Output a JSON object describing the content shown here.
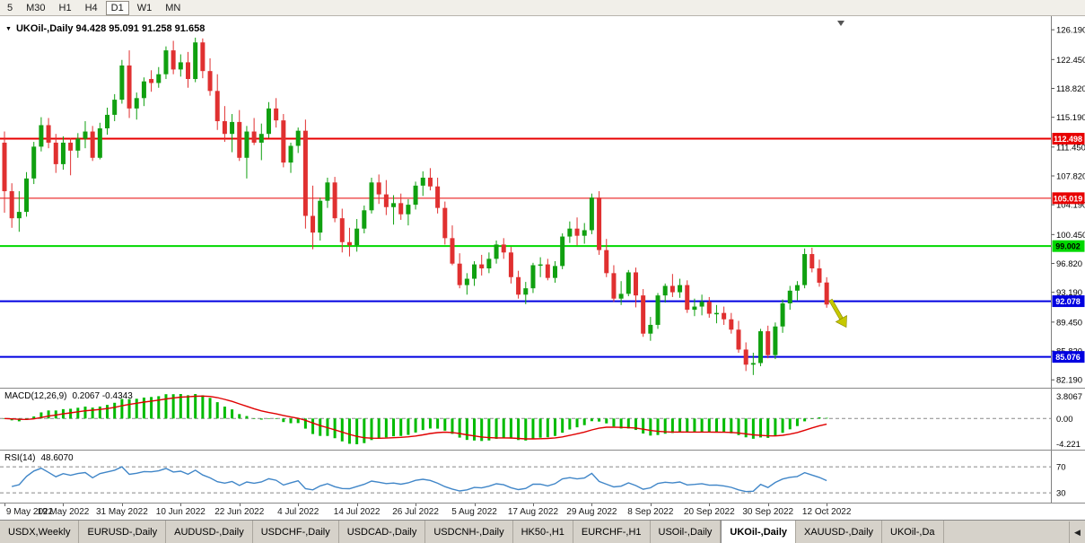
{
  "toolbar": {
    "buttons": [
      "5",
      "M30",
      "H1",
      "H4",
      "D1",
      "W1",
      "MN"
    ],
    "active": "D1"
  },
  "chart": {
    "marker_icon": "▼",
    "title": "UKOil-,Daily  94.428 95.091 91.258 91.658"
  },
  "colors": {
    "bull": "#10a010",
    "bear": "#e03030",
    "red_line": "#e80000",
    "green_line": "#00d800",
    "blue_line": "#0000e0",
    "macd_hist": "#00bb00",
    "macd_signal": "#e00000",
    "rsi_line": "#4086c8",
    "arrow": "#c6c800",
    "axis_line": "#808080",
    "dash": "#888888"
  },
  "chart_data": {
    "type": "candlestick",
    "symbol": "UKOil-",
    "timeframe": "Daily",
    "last_ohlc": {
      "open": 94.428,
      "high": 95.091,
      "low": 91.258,
      "close": 91.658
    },
    "y_range": [
      81.2,
      127.9
    ],
    "y_ticks": [
      126.19,
      122.45,
      118.82,
      115.19,
      111.45,
      107.82,
      104.19,
      100.45,
      96.82,
      93.19,
      89.45,
      85.82,
      82.19
    ],
    "x_label_every": 8,
    "x_labels": [
      "9 May 2022",
      "19 May 2022",
      "31 May 2022",
      "10 Jun 2022",
      "22 Jun 2022",
      "4 Jul 2022",
      "14 Jul 2022",
      "26 Jul 2022",
      "5 Aug 2022",
      "17 Aug 2022",
      "29 Aug 2022",
      "8 Sep 2022",
      "20 Sep 2022",
      "30 Sep 2022",
      "12 Oct 2022"
    ],
    "hlines": [
      {
        "value": 112.498,
        "label": "112.498",
        "color": "#e80000",
        "width": 2,
        "text_color": "#ffffff"
      },
      {
        "value": 105.019,
        "label": "105.019",
        "color": "#e80000",
        "width": 1,
        "text_color": "#ffffff"
      },
      {
        "value": 99.002,
        "label": "99.002",
        "color": "#00d800",
        "width": 2,
        "text_color": "#000000"
      },
      {
        "value": 92.078,
        "label": "92.078",
        "color": "#0000e0",
        "width": 2,
        "text_color": "#ffffff"
      },
      {
        "value": 85.076,
        "label": "85.076",
        "color": "#0000e0",
        "width": 2,
        "text_color": "#ffffff"
      }
    ],
    "candles": [
      [
        112.0,
        113.4,
        103.2,
        105.9
      ],
      [
        105.9,
        106.9,
        101.3,
        102.5
      ],
      [
        102.5,
        105.9,
        100.8,
        103.3
      ],
      [
        103.3,
        108.3,
        102.7,
        107.5
      ],
      [
        107.5,
        112.1,
        106.8,
        111.5
      ],
      [
        111.5,
        115.2,
        110.9,
        114.2
      ],
      [
        114.2,
        115.1,
        111.3,
        112.0
      ],
      [
        112.0,
        113.1,
        108.2,
        109.3
      ],
      [
        109.3,
        112.8,
        108.6,
        112.0
      ],
      [
        112.0,
        112.6,
        107.9,
        111.0
      ],
      [
        111.0,
        113.2,
        110.1,
        112.5
      ],
      [
        112.5,
        114.7,
        111.3,
        113.4
      ],
      [
        113.4,
        114.1,
        109.7,
        110.1
      ],
      [
        110.1,
        114.5,
        109.9,
        113.8
      ],
      [
        113.8,
        116.4,
        113.0,
        115.5
      ],
      [
        115.5,
        118.1,
        114.7,
        117.4
      ],
      [
        117.4,
        122.4,
        116.9,
        121.7
      ],
      [
        121.7,
        123.6,
        115.1,
        116.3
      ],
      [
        116.3,
        118.3,
        114.9,
        117.6
      ],
      [
        117.6,
        120.2,
        116.6,
        119.7
      ],
      [
        120.0,
        121.1,
        118.4,
        119.5
      ],
      [
        119.5,
        121.5,
        118.9,
        120.6
      ],
      [
        120.6,
        124.1,
        120.0,
        123.6
      ],
      [
        123.6,
        124.8,
        120.6,
        121.2
      ],
      [
        121.2,
        123.1,
        120.3,
        122.1
      ],
      [
        122.1,
        123.4,
        118.9,
        120.0
      ],
      [
        120.0,
        125.2,
        119.6,
        124.6
      ],
      [
        124.6,
        125.1,
        120.1,
        121.0
      ],
      [
        121.0,
        122.6,
        117.9,
        118.5
      ],
      [
        118.5,
        120.6,
        113.6,
        114.7
      ],
      [
        114.7,
        116.6,
        112.1,
        113.1
      ],
      [
        113.1,
        115.6,
        110.8,
        114.6
      ],
      [
        114.6,
        116.1,
        109.7,
        110.1
      ],
      [
        110.1,
        114.1,
        107.5,
        113.4
      ],
      [
        113.4,
        115.1,
        111.7,
        112.0
      ],
      [
        112.0,
        114.4,
        109.8,
        113.1
      ],
      [
        113.1,
        117.1,
        112.6,
        116.3
      ],
      [
        116.3,
        117.6,
        113.9,
        114.8
      ],
      [
        114.8,
        115.6,
        108.9,
        109.5
      ],
      [
        109.5,
        112.0,
        108.2,
        111.6
      ],
      [
        111.6,
        113.9,
        110.7,
        113.5
      ],
      [
        113.5,
        114.9,
        101.2,
        102.8
      ],
      [
        102.8,
        106.6,
        98.6,
        100.7
      ],
      [
        100.7,
        105.1,
        99.7,
        104.7
      ],
      [
        104.7,
        107.6,
        103.8,
        107.0
      ],
      [
        107.0,
        107.7,
        102.0,
        102.5
      ],
      [
        102.5,
        103.7,
        98.2,
        99.5
      ],
      [
        99.5,
        101.3,
        97.7,
        99.1
      ],
      [
        99.1,
        102.4,
        98.3,
        101.2
      ],
      [
        101.2,
        104.1,
        100.6,
        103.5
      ],
      [
        103.5,
        107.6,
        103.1,
        107.0
      ],
      [
        107.0,
        108.0,
        104.3,
        105.5
      ],
      [
        105.5,
        107.3,
        102.9,
        103.9
      ],
      [
        103.9,
        105.4,
        101.7,
        104.4
      ],
      [
        104.4,
        105.6,
        102.3,
        103.0
      ],
      [
        103.0,
        104.9,
        101.6,
        104.2
      ],
      [
        104.2,
        107.1,
        103.6,
        106.6
      ],
      [
        106.6,
        108.4,
        105.3,
        107.6
      ],
      [
        107.6,
        108.8,
        106.0,
        106.5
      ],
      [
        106.5,
        107.6,
        103.1,
        103.8
      ],
      [
        103.8,
        104.6,
        99.2,
        100.0
      ],
      [
        100.0,
        101.6,
        96.6,
        96.8
      ],
      [
        96.8,
        98.1,
        93.7,
        94.1
      ],
      [
        94.1,
        95.6,
        92.9,
        94.9
      ],
      [
        94.9,
        97.1,
        94.0,
        96.7
      ],
      [
        96.7,
        97.9,
        95.3,
        96.2
      ],
      [
        96.2,
        98.2,
        95.6,
        97.4
      ],
      [
        97.4,
        99.7,
        96.8,
        99.2
      ],
      [
        99.2,
        100.0,
        97.4,
        98.2
      ],
      [
        98.2,
        98.9,
        94.3,
        95.1
      ],
      [
        95.1,
        95.9,
        92.4,
        92.9
      ],
      [
        92.9,
        94.5,
        91.7,
        93.7
      ],
      [
        93.7,
        96.9,
        93.1,
        96.6
      ],
      [
        96.6,
        97.6,
        95.1,
        96.7
      ],
      [
        96.7,
        97.4,
        94.7,
        95.0
      ],
      [
        95.0,
        97.1,
        94.4,
        96.5
      ],
      [
        96.5,
        100.6,
        96.1,
        100.2
      ],
      [
        100.2,
        102.1,
        99.4,
        101.2
      ],
      [
        101.2,
        102.6,
        99.1,
        100.3
      ],
      [
        100.3,
        101.9,
        99.3,
        101.0
      ],
      [
        101.0,
        105.6,
        100.5,
        105.1
      ],
      [
        105.1,
        105.9,
        97.9,
        98.5
      ],
      [
        98.5,
        99.9,
        95.1,
        95.6
      ],
      [
        95.6,
        96.6,
        92.0,
        92.4
      ],
      [
        92.4,
        94.6,
        91.6,
        93.0
      ],
      [
        93.0,
        96.0,
        92.7,
        95.7
      ],
      [
        95.7,
        96.3,
        91.3,
        92.8
      ],
      [
        92.8,
        93.6,
        87.6,
        88.0
      ],
      [
        88.0,
        90.1,
        87.1,
        89.1
      ],
      [
        89.1,
        93.1,
        88.6,
        92.8
      ],
      [
        92.8,
        94.3,
        91.9,
        94.0
      ],
      [
        94.0,
        95.5,
        92.6,
        93.2
      ],
      [
        93.2,
        94.9,
        92.5,
        94.1
      ],
      [
        94.1,
        94.7,
        90.6,
        91.0
      ],
      [
        91.0,
        92.4,
        90.2,
        91.4
      ],
      [
        91.4,
        92.9,
        90.3,
        92.0
      ],
      [
        92.0,
        92.6,
        90.0,
        90.5
      ],
      [
        90.5,
        91.6,
        89.3,
        90.6
      ],
      [
        90.6,
        91.4,
        89.1,
        89.8
      ],
      [
        89.8,
        90.6,
        88.0,
        88.5
      ],
      [
        88.5,
        89.6,
        85.6,
        86.0
      ],
      [
        86.0,
        86.9,
        83.3,
        84.1
      ],
      [
        84.1,
        85.6,
        82.8,
        84.3
      ],
      [
        84.3,
        88.6,
        83.9,
        88.3
      ],
      [
        88.3,
        89.0,
        84.9,
        85.3
      ],
      [
        85.3,
        89.4,
        84.8,
        88.9
      ],
      [
        88.9,
        92.3,
        88.1,
        91.8
      ],
      [
        91.8,
        94.0,
        91.0,
        93.4
      ],
      [
        93.4,
        94.6,
        92.2,
        94.1
      ],
      [
        94.1,
        98.7,
        93.7,
        98.0
      ],
      [
        98.0,
        98.8,
        95.7,
        96.2
      ],
      [
        96.2,
        97.3,
        93.9,
        94.4
      ],
      [
        94.428,
        95.091,
        91.258,
        91.658
      ]
    ],
    "macd": {
      "name": "MACD(12,26,9)",
      "values": "0.2067 -0.4343",
      "axis_max": "3.8067",
      "axis_zero": "0.00",
      "axis_min": "-4.221",
      "params": [
        12,
        26,
        9
      ]
    },
    "rsi": {
      "name": "RSI(14)",
      "value": "48.6070",
      "upper": "70",
      "lower": "30",
      "period": 14
    }
  },
  "tabs": {
    "items": [
      "USDX,Weekly",
      "EURUSD-,Daily",
      "AUDUSD-,Daily",
      "USDCHF-,Daily",
      "USDCAD-,Daily",
      "USDCNH-,Daily",
      "HK50-,H1",
      "EURCHF-,H1",
      "USOil-,Daily",
      "UKOil-,Daily",
      "XAUUSD-,Daily",
      "UKOil-,Da"
    ],
    "active_index": 9,
    "scroll_left_icon": "◀"
  }
}
